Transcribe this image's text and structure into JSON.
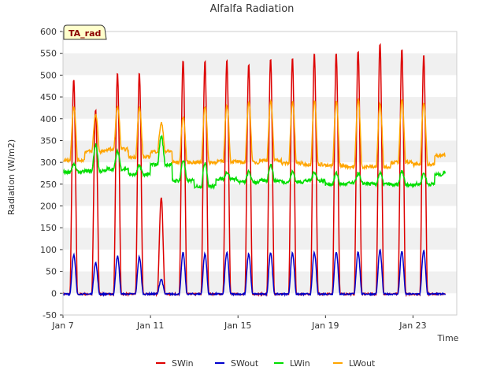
{
  "chart_data": {
    "type": "line",
    "title": "Alfalfa Radiation",
    "xlabel": "Time",
    "ylabel": "Radiation (W/m2)",
    "tag": "TA_rad",
    "xlim": [
      "2024-01-07",
      "2024-01-25"
    ],
    "ylim": [
      -50,
      600
    ],
    "x_ticks": [
      "Jan 7",
      "Jan 11",
      "Jan 15",
      "Jan 19",
      "Jan 23"
    ],
    "y_ticks": [
      -50,
      0,
      50,
      100,
      150,
      200,
      250,
      300,
      350,
      400,
      450,
      500,
      550,
      600
    ],
    "grid": true,
    "legend_position": "bottom",
    "days": [
      "2024-01-07",
      "2024-01-08",
      "2024-01-09",
      "2024-01-10",
      "2024-01-11",
      "2024-01-12",
      "2024-01-13",
      "2024-01-14",
      "2024-01-15",
      "2024-01-16",
      "2024-01-17",
      "2024-01-18",
      "2024-01-19",
      "2024-01-20",
      "2024-01-21",
      "2024-01-22",
      "2024-01-23",
      "2024-01-24"
    ],
    "series": [
      {
        "name": "SWin",
        "color": "#dd0000",
        "daily_peak": [
          490,
          420,
          505,
          505,
          220,
          535,
          533,
          535,
          525,
          537,
          540,
          550,
          552,
          558,
          572,
          560,
          548,
          0
        ]
      },
      {
        "name": "SWout",
        "color": "#0000cc",
        "daily_peak": [
          88,
          70,
          85,
          83,
          32,
          92,
          90,
          93,
          90,
          93,
          92,
          93,
          95,
          95,
          98,
          96,
          97,
          0
        ]
      },
      {
        "name": "LWin",
        "color": "#00dd00",
        "daily_min": [
          278,
          280,
          285,
          272,
          295,
          258,
          245,
          262,
          255,
          258,
          255,
          258,
          250,
          252,
          250,
          248,
          250,
          272
        ],
        "daily_max": [
          295,
          340,
          325,
          292,
          360,
          305,
          300,
          278,
          278,
          295,
          278,
          278,
          275,
          275,
          275,
          280,
          275,
          278
        ]
      },
      {
        "name": "LWout",
        "color": "#ffa500",
        "daily_min": [
          305,
          325,
          330,
          312,
          325,
          300,
          300,
          302,
          300,
          305,
          298,
          295,
          292,
          290,
          290,
          300,
          295,
          315
        ],
        "daily_max": [
          428,
          410,
          428,
          425,
          390,
          405,
          430,
          432,
          440,
          440,
          440,
          442,
          440,
          445,
          435,
          440,
          438,
          318
        ]
      }
    ]
  }
}
